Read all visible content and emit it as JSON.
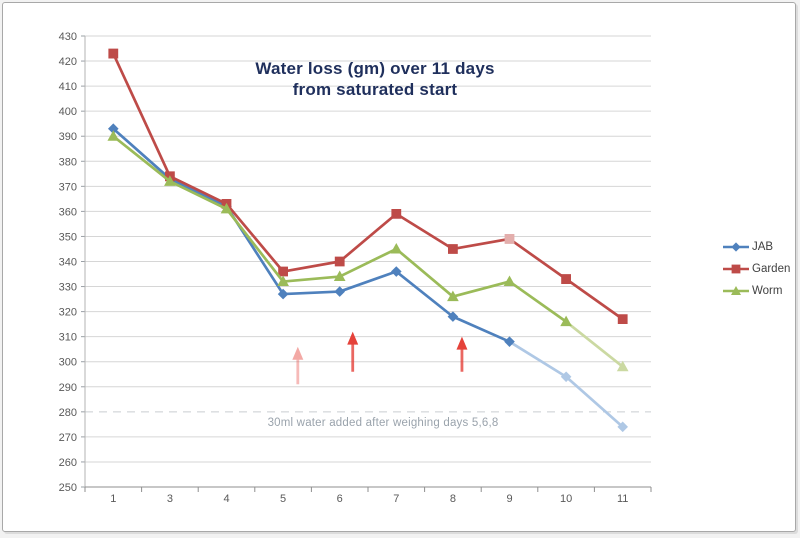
{
  "window": {
    "background": "#ffffff",
    "border_color": "#a8a8a8"
  },
  "chart_data": {
    "type": "line",
    "title_line1": "Water loss (gm) over 11 days",
    "title_line2": "from saturated start",
    "title_color": "#1f2f5c",
    "categories": [
      "1",
      "3",
      "4",
      "5",
      "6",
      "7",
      "8",
      "9",
      "10",
      "11"
    ],
    "y_axis": {
      "min": 250,
      "max": 430,
      "step": 10,
      "tick_labels": [
        "250",
        "260",
        "270",
        "280",
        "290",
        "300",
        "310",
        "320",
        "330",
        "340",
        "350",
        "360",
        "370",
        "380",
        "390",
        "400",
        "410",
        "420",
        "430"
      ],
      "dashed_gridline_value": 280
    },
    "series": [
      {
        "name": "JAB",
        "marker": "diamond",
        "color": "#4F81BD",
        "light_color": "#AFC8E5",
        "values": [
          393,
          373,
          362,
          327,
          328,
          336,
          318,
          308,
          294,
          274
        ],
        "fade_segments_from": 7,
        "fade_markers_from": 8,
        "light_marker_indices": []
      },
      {
        "name": "Garden",
        "marker": "square",
        "color": "#BE4B48",
        "light_color": "#E3AEAC",
        "values": [
          423,
          374,
          363,
          336,
          340,
          359,
          345,
          349,
          333,
          317
        ],
        "fade_segments_from": null,
        "fade_markers_from": null,
        "light_marker_indices": [
          7
        ]
      },
      {
        "name": "Worm",
        "marker": "triangle",
        "color": "#9BBB59",
        "light_color": "#CBD9A2",
        "values": [
          390,
          372,
          361,
          332,
          334,
          345,
          326,
          332,
          316,
          298
        ],
        "fade_segments_from": 8,
        "fade_markers_from": 9,
        "light_marker_indices": []
      }
    ],
    "legend": {
      "position": "right",
      "entries": [
        "JAB",
        "Garden",
        "Worm"
      ]
    },
    "annotation": {
      "text": "30ml water added after weighing days 5,6,8",
      "color": "#9aa3ac"
    },
    "arrows": [
      {
        "x_index": 3.26,
        "tip_value": 306,
        "tail_value": 291,
        "faded": true
      },
      {
        "x_index": 4.23,
        "tip_value": 312,
        "tail_value": 296,
        "faded": false
      },
      {
        "x_index": 6.16,
        "tip_value": 310,
        "tail_value": 296,
        "faded": false
      }
    ],
    "arrow_color": "#E5423A",
    "grid_color": "#d6d6d6",
    "axis_color": "#9aa0a6",
    "tick_label_color": "#595959",
    "xlabel": "",
    "ylabel": "",
    "grid": true
  }
}
